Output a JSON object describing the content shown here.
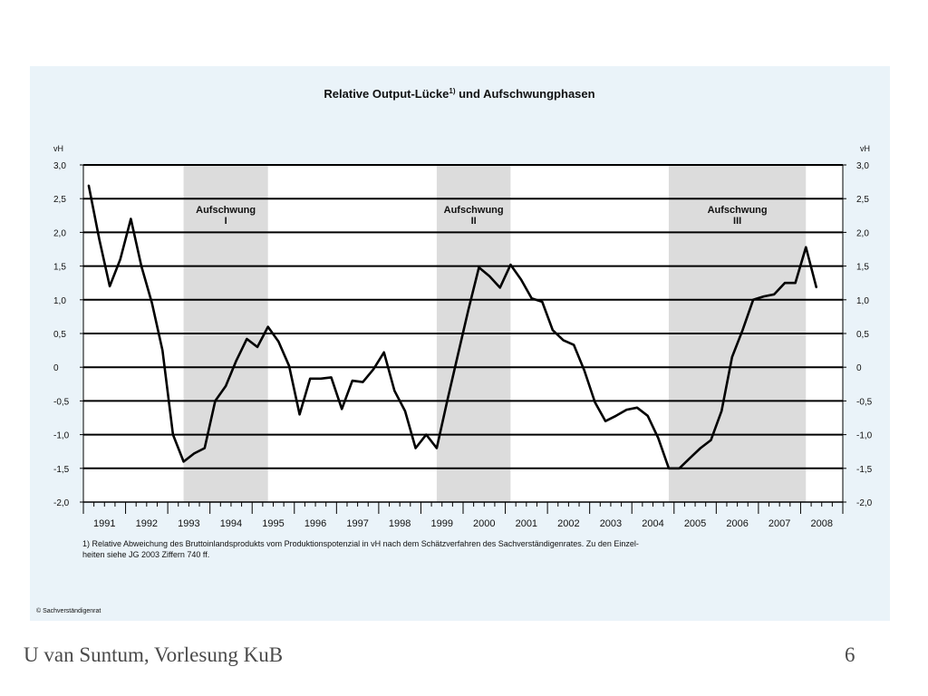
{
  "slide": {
    "footer_left": "U van Suntum, Vorlesung KuB",
    "page_number": "6"
  },
  "chart_data": {
    "type": "line",
    "title": "Relative Output-Lücke",
    "title_superscript": "1)",
    "title_suffix": " und Aufschwungphasen",
    "ylabel_left": "vH",
    "ylabel_right": "vH",
    "ylim": [
      -2.0,
      3.0
    ],
    "y_ticks": [
      3.0,
      2.5,
      2.0,
      1.5,
      1.0,
      0.5,
      0,
      -0.5,
      -1.0,
      -1.5,
      -2.0
    ],
    "y_tick_labels": [
      "3,0",
      "2,5",
      "2,0",
      "1,5",
      "1,0",
      "0,5",
      "0",
      "-0,5",
      "-1,0",
      "-1,5",
      "-2,0"
    ],
    "x_categories": [
      "1991",
      "1992",
      "1993",
      "1994",
      "1995",
      "1996",
      "1997",
      "1998",
      "1999",
      "2000",
      "2001",
      "2002",
      "2003",
      "2004",
      "2005",
      "2006",
      "2007",
      "2008"
    ],
    "x_unit": "quarters",
    "grid": "horizontal",
    "series": [
      {
        "color": "#000000",
        "x": [
          1,
          2,
          3,
          4,
          5,
          6,
          7,
          8,
          9,
          10,
          11,
          12,
          13,
          14,
          15,
          16,
          17,
          18,
          19,
          20,
          21,
          22,
          23,
          24,
          25,
          26,
          27,
          28,
          29,
          30,
          31,
          32,
          33,
          34,
          35,
          36,
          37,
          38,
          39,
          40,
          41,
          42,
          43,
          44,
          45,
          46,
          47,
          48,
          49,
          50,
          51,
          52,
          53,
          54,
          55,
          56,
          57,
          58,
          59,
          60,
          61,
          62,
          63,
          64,
          65,
          66,
          67,
          68,
          69,
          70
        ],
        "values": [
          2.7,
          1.9,
          1.2,
          1.6,
          2.2,
          1.5,
          0.95,
          0.25,
          -1.0,
          -1.4,
          -1.28,
          -1.2,
          -0.5,
          -0.28,
          0.1,
          0.42,
          0.3,
          0.6,
          0.38,
          0.02,
          -0.7,
          -0.17,
          -0.17,
          -0.15,
          -0.62,
          -0.2,
          -0.22,
          -0.03,
          0.22,
          -0.35,
          -0.65,
          -1.2,
          -1.0,
          -1.2,
          -0.5,
          0.18,
          0.85,
          1.48,
          1.35,
          1.18,
          1.52,
          1.3,
          1.02,
          0.97,
          0.55,
          0.4,
          0.33,
          -0.05,
          -0.52,
          -0.8,
          -0.72,
          -0.63,
          -0.6,
          -0.72,
          -1.05,
          -1.5,
          -1.5,
          -1.35,
          -1.2,
          -1.08,
          -0.65,
          0.15,
          0.55,
          1.0,
          1.05,
          1.08,
          1.25,
          1.25,
          1.78,
          1.18
        ]
      }
    ],
    "phases": [
      {
        "label": "Aufschwung",
        "numeral": "I",
        "start_q": 9.5,
        "end_q": 17.5
      },
      {
        "label": "Aufschwung",
        "numeral": "II",
        "start_q": 33.5,
        "end_q": 40.5
      },
      {
        "label": "Aufschwung",
        "numeral": "III",
        "start_q": 55.5,
        "end_q": 68.5
      }
    ],
    "footnote_line1": "1) Relative Abweichung des Bruttoinlandsprodukts vom Produktionspotenzial in vH nach dem Schätzverfahren des Sachverständigenrates. Zu den Einzel-",
    "footnote_line2": "heiten siehe JG 2003 Ziffern 740 ff.",
    "source": "© Sachverständigenrat",
    "colors": {
      "panel_background": "#eaf3f9",
      "plot_background": "#ffffff",
      "phase_shading": "#dcdcdc",
      "line": "#000000"
    }
  }
}
